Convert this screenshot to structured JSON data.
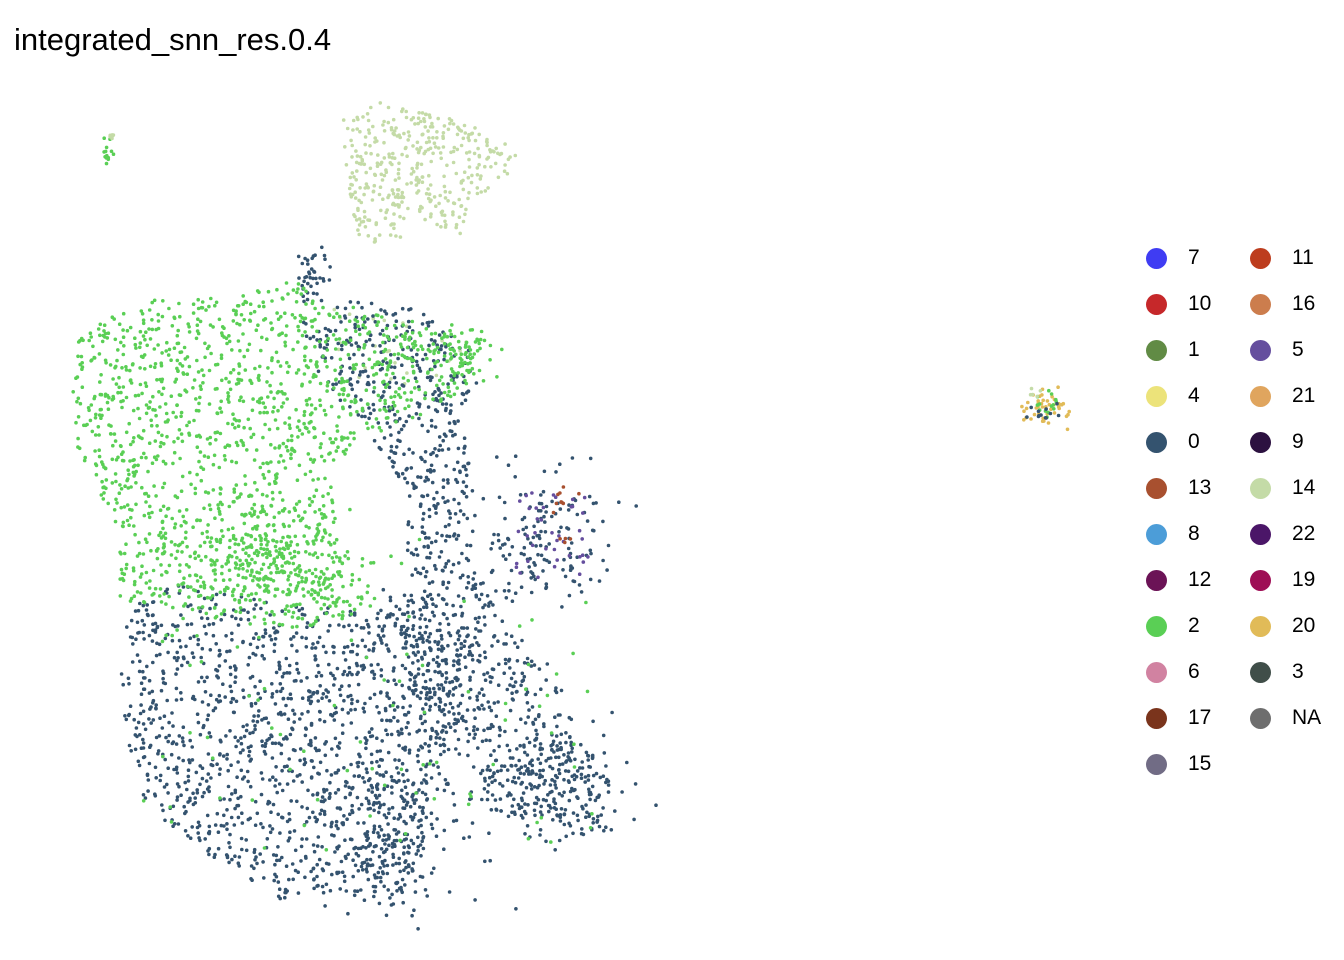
{
  "chart_data": {
    "type": "scatter",
    "title": "integrated_snn_res.0.4",
    "xlabel": "",
    "ylabel": "",
    "grid": false,
    "axes_visible": false,
    "legend_position": "right",
    "legend": [
      {
        "label": "7",
        "color": "#3f3cf3"
      },
      {
        "label": "10",
        "color": "#c6282a"
      },
      {
        "label": "1",
        "color": "#618b45"
      },
      {
        "label": "4",
        "color": "#ece37a"
      },
      {
        "label": "0",
        "color": "#34536f"
      },
      {
        "label": "13",
        "color": "#a8502f"
      },
      {
        "label": "8",
        "color": "#4c9dd8"
      },
      {
        "label": "12",
        "color": "#6b1356"
      },
      {
        "label": "2",
        "color": "#5acf55"
      },
      {
        "label": "6",
        "color": "#d182a1"
      },
      {
        "label": "17",
        "color": "#7a341c"
      },
      {
        "label": "15",
        "color": "#716c85"
      },
      {
        "label": "11",
        "color": "#bd3d1e"
      },
      {
        "label": "16",
        "color": "#cc7d4d"
      },
      {
        "label": "5",
        "color": "#654e9e"
      },
      {
        "label": "21",
        "color": "#e0a55e"
      },
      {
        "label": "9",
        "color": "#2c1140"
      },
      {
        "label": "14",
        "color": "#c4dba7"
      },
      {
        "label": "22",
        "color": "#4b1668"
      },
      {
        "label": "19",
        "color": "#9e0e55"
      },
      {
        "label": "20",
        "color": "#e1bb58"
      },
      {
        "label": "3",
        "color": "#404e49"
      },
      {
        "label": "NA",
        "color": "#6e6e6e"
      }
    ],
    "clusters": [
      {
        "label": "0",
        "color": "#34536f",
        "n": 2600
      },
      {
        "label": "2",
        "color": "#5acf55",
        "n": 1900
      },
      {
        "label": "14",
        "color": "#c4dba7",
        "n": 420
      },
      {
        "label": "5",
        "color": "#654e9e",
        "n": 40
      },
      {
        "label": "13",
        "color": "#a8502f",
        "n": 14
      },
      {
        "label": "20",
        "color": "#e1bb58",
        "n": 45
      }
    ]
  }
}
